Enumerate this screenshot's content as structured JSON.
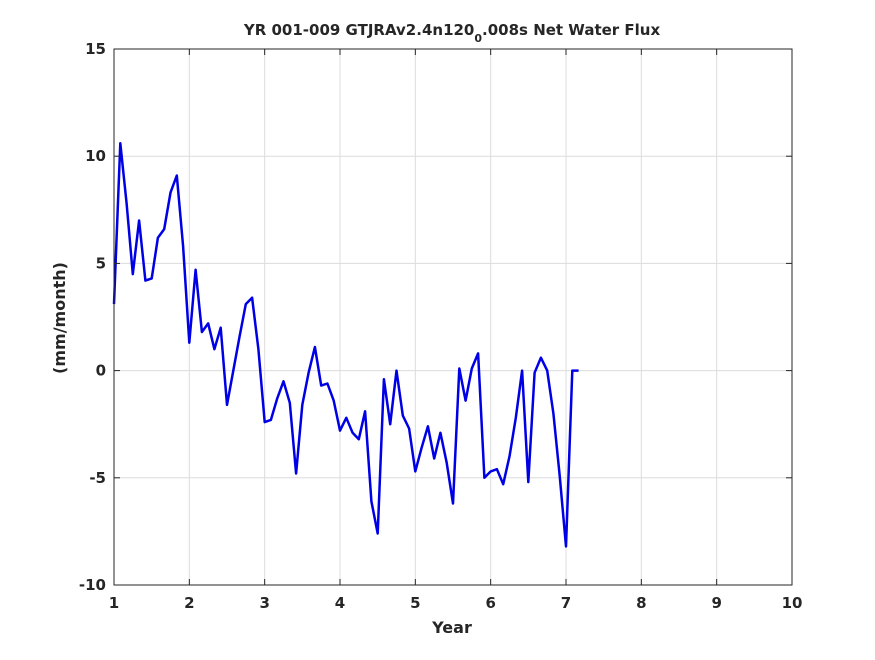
{
  "chart_data": {
    "type": "line",
    "title_main": "YR 001-009 GTJRAv2.4n120",
    "title_sub": "0",
    "title_end": ".008s Net Water Flux",
    "xlabel": "Year",
    "ylabel": "(mm/month)",
    "xlim": [
      1,
      10
    ],
    "ylim": [
      -10,
      15
    ],
    "xticks": [
      "1",
      "2",
      "3",
      "4",
      "5",
      "6",
      "7",
      "8",
      "9",
      "10"
    ],
    "yticks": [
      "15",
      "10",
      "5",
      "0",
      "-5",
      "-10"
    ],
    "grid": true,
    "line_color": "#0000e6",
    "series": [
      {
        "x": [
          1.0,
          1.083,
          1.167,
          1.25,
          1.333,
          1.417,
          1.5,
          1.583,
          1.667,
          1.75,
          1.833,
          1.917,
          2.0,
          2.083,
          2.167,
          2.25,
          2.333,
          2.417,
          2.5,
          2.583,
          2.667,
          2.75,
          2.833,
          2.917,
          3.0,
          3.083,
          3.167,
          3.25,
          3.333,
          3.417,
          3.5,
          3.583,
          3.667,
          3.75,
          3.833,
          3.917,
          4.0,
          4.083,
          4.167,
          4.25,
          4.333,
          4.417,
          4.5,
          4.583,
          4.667,
          4.75,
          4.833,
          4.917,
          5.0,
          5.083,
          5.167,
          5.25,
          5.333,
          5.417,
          5.5,
          5.583,
          5.667,
          5.75,
          5.833,
          5.917,
          6.0,
          6.083,
          6.167,
          6.25,
          6.333,
          6.417,
          6.5,
          6.583,
          6.667,
          6.75,
          6.833,
          6.917,
          7.0,
          7.083,
          7.167
        ],
        "values": [
          3.1,
          10.6,
          7.8,
          4.5,
          7.0,
          4.2,
          4.3,
          6.2,
          6.6,
          8.3,
          9.1,
          5.8,
          1.3,
          4.7,
          1.8,
          2.2,
          1.0,
          2.0,
          -1.6,
          0.0,
          1.6,
          3.1,
          3.4,
          1.0,
          -2.4,
          -2.3,
          -1.3,
          -0.5,
          -1.5,
          -4.8,
          -1.6,
          -0.1,
          1.1,
          -0.7,
          -0.6,
          -1.4,
          -2.8,
          -2.2,
          -2.9,
          -3.2,
          -1.9,
          -6.1,
          -7.6,
          -0.4,
          -2.5,
          0.0,
          -2.1,
          -2.7,
          -4.7,
          -3.6,
          -2.6,
          -4.1,
          -2.9,
          -4.3,
          -6.2,
          0.1,
          -1.4,
          0.1,
          0.8,
          -5.0,
          -4.7,
          -4.6,
          -5.3,
          -4.0,
          -2.2,
          0.0,
          -5.2,
          -0.1,
          0.6,
          0.0,
          -2.0,
          -4.9,
          -8.2,
          0.0,
          0.0
        ]
      }
    ]
  }
}
